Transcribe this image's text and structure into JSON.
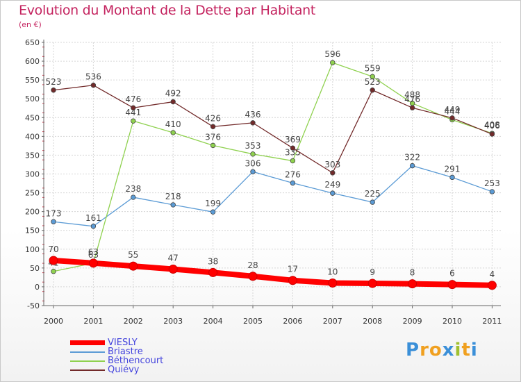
{
  "title": "Evolution du Montant de la Dette par Habitant",
  "unit": "(en €)",
  "logo": {
    "text": "Proxiti",
    "letters": [
      {
        "char": "P",
        "color": "#3a8fd8"
      },
      {
        "char": "r",
        "color": "#f0a020"
      },
      {
        "char": "o",
        "color": "#f0a020"
      },
      {
        "char": "x",
        "color": "#3a8fd8"
      },
      {
        "char": "i",
        "color": "#a0c030"
      },
      {
        "char": "t",
        "color": "#f0a020"
      },
      {
        "char": "i",
        "color": "#3a8fd8"
      }
    ]
  },
  "chart_data": {
    "type": "line",
    "title": "Evolution du Montant de la Dette par Habitant",
    "ylabel": "(en €)",
    "xlabel": "",
    "x": [
      "2000",
      "2001",
      "2002",
      "2003",
      "2004",
      "2005",
      "2006",
      "2007",
      "2008",
      "2009",
      "2010",
      "2011"
    ],
    "ylim": [
      -50,
      650
    ],
    "yticks": [
      -50,
      0,
      50,
      100,
      150,
      200,
      250,
      300,
      350,
      400,
      450,
      500,
      550,
      600,
      650
    ],
    "grid": true,
    "legend_position": "bottom-left",
    "series": [
      {
        "name": "VIESLY",
        "color": "#ff0000",
        "values": [
          70,
          63,
          55,
          47,
          38,
          28,
          17,
          10,
          9,
          8,
          6,
          4
        ]
      },
      {
        "name": "Briastre",
        "color": "#5b9bd5",
        "values": [
          173,
          161,
          238,
          218,
          199,
          306,
          276,
          249,
          225,
          322,
          291,
          253
        ]
      },
      {
        "name": "Béthencourt",
        "color": "#8fd14f",
        "values": [
          41,
          63,
          441,
          410,
          376,
          353,
          335,
          596,
          559,
          488,
          444,
          408
        ]
      },
      {
        "name": "Quiévy",
        "color": "#722a2a",
        "values": [
          523,
          536,
          476,
          492,
          426,
          436,
          369,
          303,
          523,
          476,
          449,
          406
        ]
      }
    ]
  }
}
